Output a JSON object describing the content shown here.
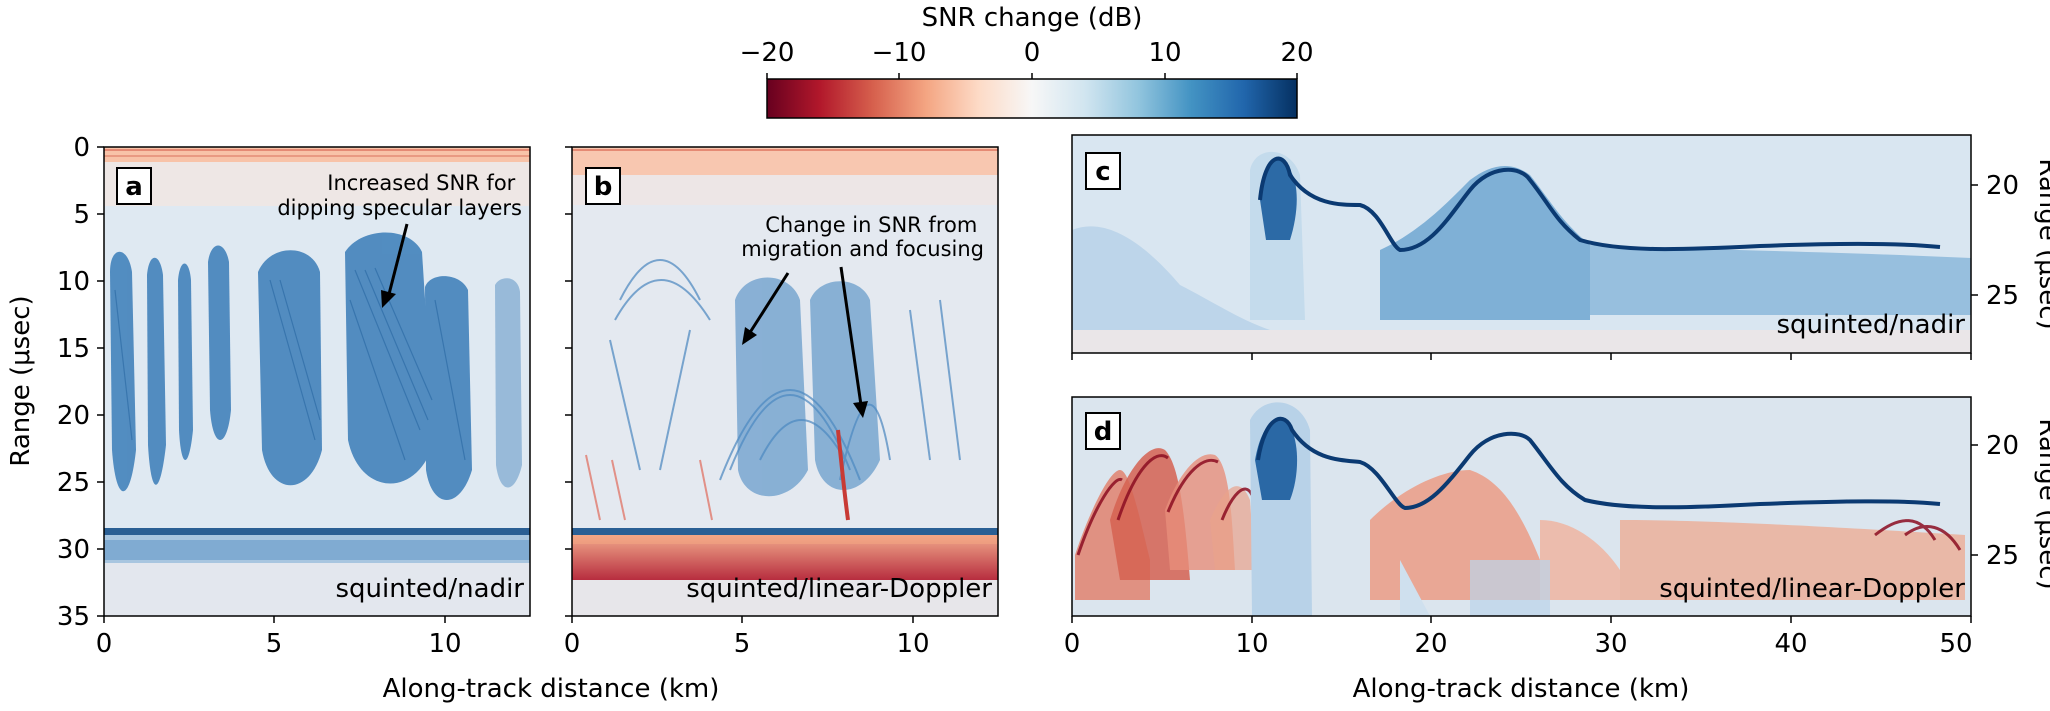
{
  "colorbar": {
    "title": "SNR change (dB)",
    "min": -20,
    "max": 20,
    "ticks": [
      -20,
      -10,
      0,
      10,
      20
    ],
    "tick_labels": [
      "−20",
      "−10",
      "0",
      "10",
      "20"
    ],
    "colors": [
      "#67001f",
      "#b2182b",
      "#d6604d",
      "#f4a582",
      "#fddbc7",
      "#f7f7f7",
      "#d1e5f0",
      "#92c5de",
      "#4393c3",
      "#2166ac",
      "#053061"
    ]
  },
  "chart_data": [
    {
      "type": "heatmap",
      "panel": "a",
      "xlabel": "Along-track distance (km)",
      "ylabel": "Range (μsec)",
      "xlim": [
        0,
        12.5
      ],
      "ylim": [
        35,
        0
      ],
      "xticks": [
        0,
        5,
        10
      ],
      "yticks": [
        0,
        5,
        10,
        15,
        20,
        25,
        30,
        35
      ],
      "label": "squinted/nadir",
      "annotation": {
        "text_lines": [
          "Increased SNR for",
          "dipping specular layers"
        ],
        "arrow_to": [
          8.3,
          12.0
        ]
      }
    },
    {
      "type": "heatmap",
      "panel": "b",
      "xlabel": "Along-track distance (km)",
      "xlim": [
        0,
        12.5
      ],
      "ylim": [
        35,
        0
      ],
      "xticks": [
        0,
        5,
        10
      ],
      "label": "squinted/linear-Doppler",
      "annotation": {
        "text_lines": [
          "Change in SNR from",
          "migration and focusing"
        ],
        "arrows_to": [
          [
            5.0,
            14.8
          ],
          [
            8.6,
            20.5
          ]
        ]
      }
    },
    {
      "type": "heatmap",
      "panel": "c",
      "ylabel": "Range (μsec)",
      "xlim": [
        0,
        50
      ],
      "ylim": [
        28,
        18
      ],
      "yticks": [
        20,
        25
      ],
      "label": "squinted/nadir"
    },
    {
      "type": "heatmap",
      "panel": "d",
      "xlabel": "Along-track distance (km)",
      "ylabel": "Range (μsec)",
      "xlim": [
        0,
        50
      ],
      "ylim": [
        28,
        18
      ],
      "xticks": [
        0,
        10,
        20,
        30,
        40,
        50
      ],
      "yticks": [
        20,
        25
      ],
      "label": "squinted/linear-Doppler"
    }
  ]
}
